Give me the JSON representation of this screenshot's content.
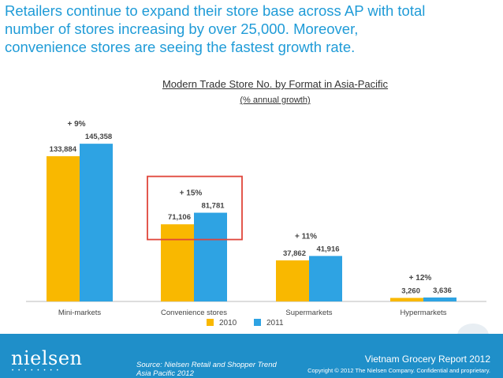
{
  "headline": {
    "line1": "Retailers continue to expand their store base across AP with total",
    "line2": "number of stores increasing by over 25,000. Moreover,",
    "line3": "convenience stores are seeing the fastest growth rate."
  },
  "chart_data": {
    "type": "bar",
    "title": "Modern Trade Store No. by Format in Asia-Pacific",
    "subtitle": "(% annual growth)",
    "categories": [
      "Mini-markets",
      "Convenience stores",
      "Supermarkets",
      "Hypermarkets"
    ],
    "series": [
      {
        "name": "2010",
        "values": [
          133884,
          71106,
          37862,
          3260
        ],
        "labels": [
          "133,884",
          "71,106",
          "37,862",
          "3,260"
        ],
        "color": "#f9b800"
      },
      {
        "name": "2011",
        "values": [
          145358,
          81781,
          41916,
          3636
        ],
        "labels": [
          "145,358",
          "81,781",
          "41,916",
          "3,636"
        ],
        "color": "#2ea3e3"
      }
    ],
    "growth_labels": [
      "+ 9%",
      "+ 15%",
      "+ 11%",
      "+ 12%"
    ],
    "highlighted_category": "Convenience stores",
    "highlight_color": "#e0453a",
    "ylim": [
      0,
      160000
    ],
    "legend_position": "bottom",
    "grid": false
  },
  "footer": {
    "logo": "nielsen",
    "source_line1": "Source: Nielsen Retail and Shopper Trend",
    "source_line2": "Asia Pacific 2012",
    "report": "Vietnam Grocery Report 2012",
    "copyright": "Copyright © 2012 The Nielsen Company. Confidential and proprietary.",
    "background_color": "#1f8fc9"
  }
}
